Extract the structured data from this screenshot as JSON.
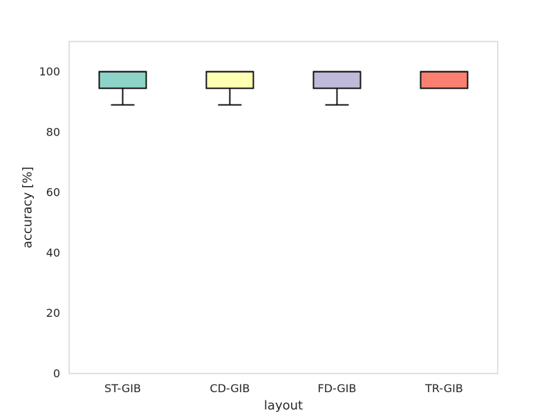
{
  "chart_data": {
    "type": "box",
    "title": "",
    "xlabel": "layout",
    "ylabel": "accuracy [%]",
    "ylim": [
      0,
      110
    ],
    "yticks": [
      0,
      20,
      40,
      60,
      80,
      100
    ],
    "grid": false,
    "categories": [
      "ST-GIB",
      "CD-GIB",
      "FD-GIB",
      "TR-GIB"
    ],
    "boxes": [
      {
        "label": "ST-GIB",
        "whisker_low": 89,
        "q1": 94.5,
        "median": 100,
        "q3": 100,
        "whisker_high": 100,
        "color": "#8dd3c7"
      },
      {
        "label": "CD-GIB",
        "whisker_low": 89,
        "q1": 94.5,
        "median": 100,
        "q3": 100,
        "whisker_high": 100,
        "color": "#ffffb3"
      },
      {
        "label": "FD-GIB",
        "whisker_low": 89,
        "q1": 94.5,
        "median": 100,
        "q3": 100,
        "whisker_high": 100,
        "color": "#bebada"
      },
      {
        "label": "TR-GIB",
        "whisker_low": 94.5,
        "q1": 94.5,
        "median": 100,
        "q3": 100,
        "whisker_high": 100,
        "color": "#fb8072"
      }
    ]
  }
}
